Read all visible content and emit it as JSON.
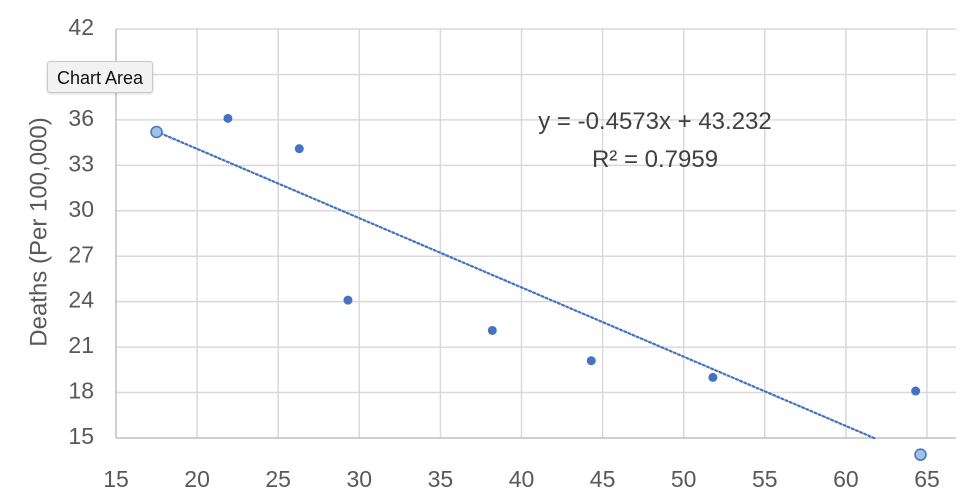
{
  "chart_data": {
    "type": "scatter",
    "xlim": [
      15,
      67
    ],
    "ylim": [
      15,
      42
    ],
    "xticks": [
      15,
      20,
      25,
      30,
      35,
      40,
      45,
      50,
      55,
      60,
      65
    ],
    "yticks": [
      15,
      18,
      21,
      24,
      27,
      30,
      33,
      36,
      39,
      42
    ],
    "ylabel": "Deaths (Per 100,000)",
    "grid": true,
    "points": [
      {
        "x": 17.5,
        "y": 35.2,
        "selected": true
      },
      {
        "x": 21.9,
        "y": 36.1
      },
      {
        "x": 26.3,
        "y": 34.1
      },
      {
        "x": 29.3,
        "y": 24.1
      },
      {
        "x": 38.2,
        "y": 22.1
      },
      {
        "x": 44.3,
        "y": 20.1
      },
      {
        "x": 51.8,
        "y": 19.0
      },
      {
        "x": 64.3,
        "y": 18.1
      },
      {
        "x": 64.6,
        "y": 13.9,
        "selected": true
      }
    ],
    "trendline": {
      "slope": -0.4573,
      "intercept": 43.232,
      "r_squared": 0.7959,
      "x_range": [
        17.5,
        61.8
      ],
      "equation": "y = -0.4573x + 43.232",
      "r2_label": "R² = 0.7959"
    },
    "colors": {
      "point": "#4472c4",
      "selected_fill": "#9dc3e6",
      "trendline": "#4472c4",
      "grid": "#d9d9d9",
      "axis": "#bfbfbf"
    }
  },
  "tooltip": {
    "label": "Chart Area"
  }
}
